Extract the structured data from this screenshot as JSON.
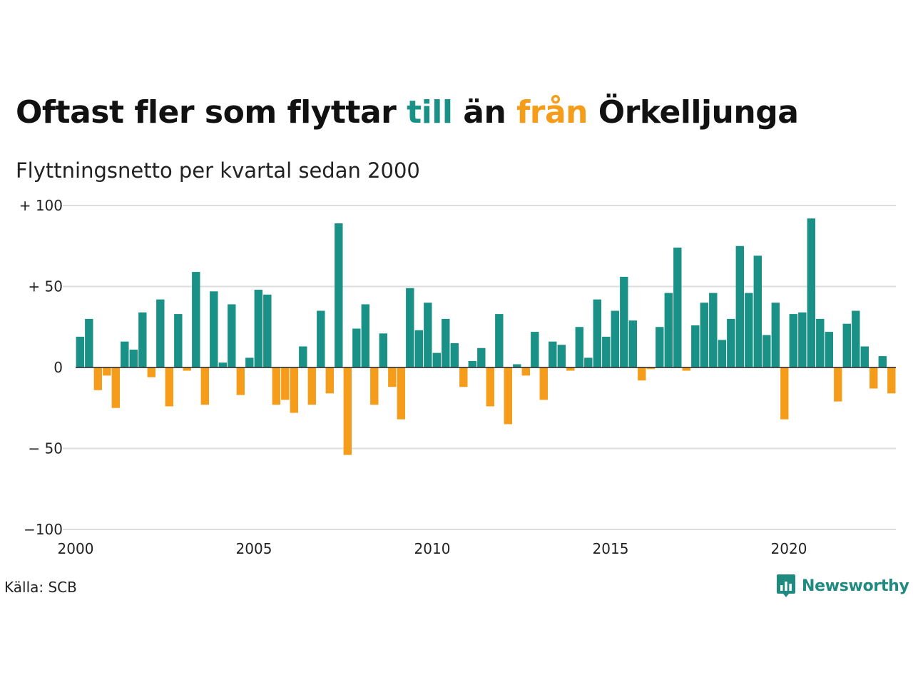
{
  "title": {
    "part1": "Oftast fler som flyttar ",
    "till": "till",
    "part2": " än ",
    "fran": "från",
    "part3": " Örkelljunga"
  },
  "subtitle": "Flyttningsnetto per kvartal sedan 2000",
  "source": "Källa: SCB",
  "logo": {
    "text": "Newsworthy",
    "icon": "bar-chart-speech-bubble-icon"
  },
  "colors": {
    "positive": "#1a9186",
    "negative": "#f59d1b",
    "grid": "#dddddd",
    "text": "#222222"
  },
  "chart_data": {
    "type": "bar",
    "x_start": "2000 Q1",
    "interval": "quarter",
    "ylim": [
      -100,
      100
    ],
    "y_ticks": [
      100,
      50,
      0,
      -50,
      -100
    ],
    "y_tick_labels": [
      "+ 100",
      "+  50",
      "0",
      "− 50",
      "−100"
    ],
    "x_ticks": [
      2000,
      2005,
      2010,
      2015,
      2020
    ],
    "x_tick_labels": [
      "2000",
      "2005",
      "2010",
      "2015",
      "2020"
    ],
    "grid": true,
    "values": [
      19,
      30,
      -14,
      -5,
      -25,
      16,
      11,
      34,
      -6,
      42,
      -24,
      33,
      -2,
      59,
      -23,
      47,
      3,
      39,
      -17,
      6,
      48,
      45,
      -23,
      -20,
      -28,
      13,
      -23,
      35,
      -16,
      89,
      -54,
      24,
      39,
      -23,
      21,
      -12,
      -32,
      49,
      23,
      40,
      9,
      30,
      15,
      -12,
      4,
      12,
      -24,
      33,
      -35,
      2,
      -5,
      22,
      -20,
      16,
      14,
      -2,
      25,
      6,
      42,
      19,
      35,
      56,
      29,
      -8,
      -1,
      25,
      46,
      74,
      -2,
      26,
      40,
      46,
      17,
      30,
      75,
      46,
      69,
      20,
      40,
      -32,
      33,
      34,
      92,
      30,
      22,
      -21,
      27,
      35,
      13,
      -13,
      7,
      -16
    ]
  }
}
